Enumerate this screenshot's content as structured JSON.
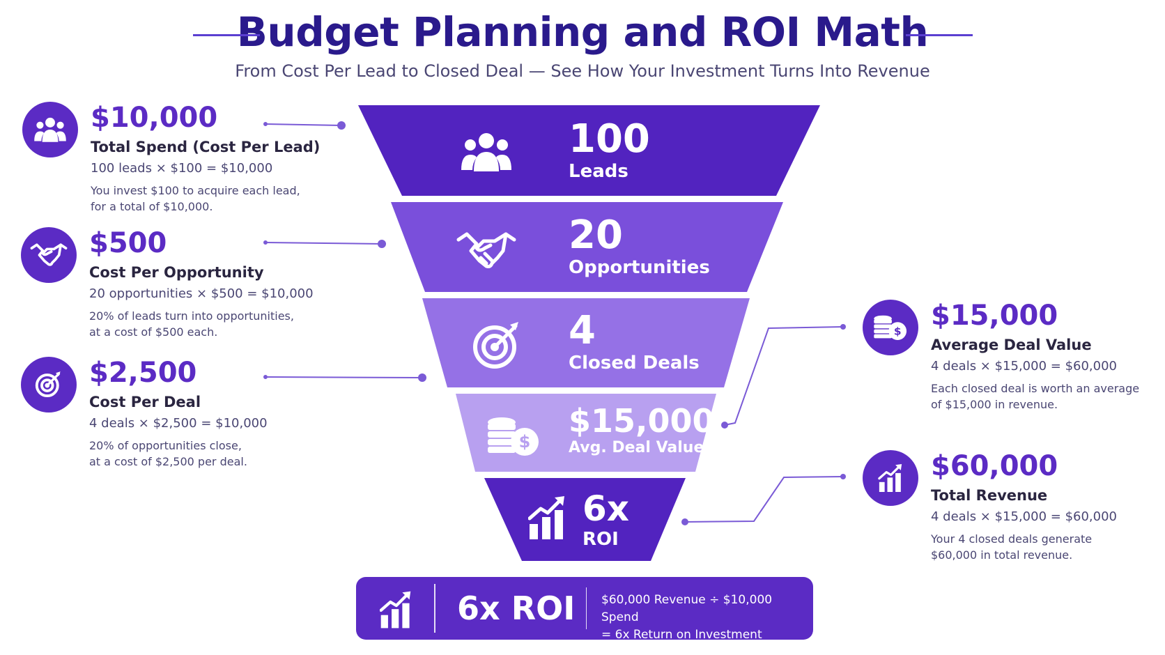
{
  "header": {
    "title": "Budget Planning and ROI Math",
    "subtitle": "From Cost Per Lead to Closed Deal — See How Your Investment Turns Into Revenue"
  },
  "left_cards": [
    {
      "icon": "users-icon",
      "value": "$10,000",
      "label": "Total Spend (Cost Per Lead)",
      "formula": "100 leads × $100 = $10,000",
      "description": "You invest $100 to acquire each lead,\nfor a total of $10,000."
    },
    {
      "icon": "handshake-icon",
      "value": "$500",
      "label": "Cost Per Opportunity",
      "formula": "20 opportunities × $500 = $10,000",
      "description": "20% of leads turn into opportunities,\nat a cost of $500 each."
    },
    {
      "icon": "target-icon",
      "value": "$2,500",
      "label": "Cost Per Deal",
      "formula": "4 deals × $2,500 = $10,000",
      "description": "20% of opportunities close,\nat a cost of $2,500 per deal."
    }
  ],
  "right_cards": [
    {
      "icon": "coins-icon",
      "value": "$15,000",
      "label": "Average Deal Value",
      "formula": "4 deals × $15,000 = $60,000",
      "description": "Each closed deal is worth an average\nof $15,000 in revenue."
    },
    {
      "icon": "growth-chart-icon",
      "value": "$60,000",
      "label": "Total Revenue",
      "formula": "4 deals × $15,000 = $60,000",
      "description": "Your 4 closed deals generate\n$60,000 in total revenue."
    }
  ],
  "funnel": [
    {
      "icon": "users-icon",
      "number": "100",
      "name": "Leads",
      "color": "#5223bf"
    },
    {
      "icon": "handshake-icon",
      "number": "20",
      "name": "Opportunities",
      "color": "#7a4fdb"
    },
    {
      "icon": "target-icon",
      "number": "4",
      "name": "Closed Deals",
      "color": "#9571e6"
    },
    {
      "icon": "coins-icon",
      "number": "$15,000",
      "name": "Avg. Deal Value",
      "color": "#b8a0f0"
    },
    {
      "icon": "growth-chart-icon",
      "number": "6x",
      "name": "ROI",
      "color": "#5223bf"
    }
  ],
  "banner": {
    "icon": "growth-chart-icon",
    "headline": "6x ROI",
    "equation_line1": "$60,000 Revenue ÷ $10,000 Spend",
    "equation_line2": "= 6x Return on Investment"
  },
  "colors": {
    "primary": "#5b2bc4",
    "title": "#2a1a8c",
    "connector": "#7a5ad6"
  }
}
